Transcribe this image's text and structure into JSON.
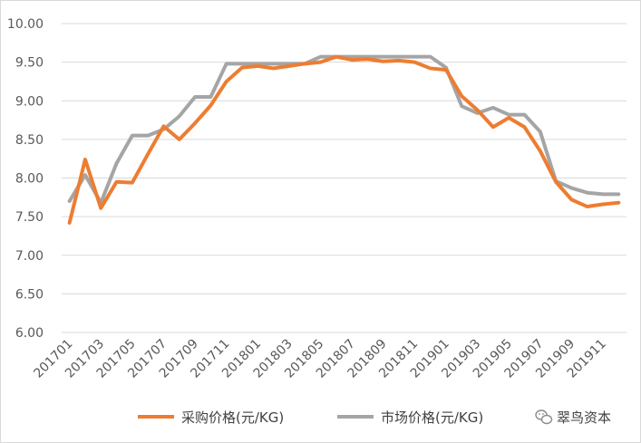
{
  "chart_data": {
    "type": "line",
    "title": "",
    "xlabel": "",
    "ylabel": "",
    "ylim": [
      6.0,
      10.0
    ],
    "y_ticks": [
      "6.00",
      "6.50",
      "7.00",
      "7.50",
      "8.00",
      "8.50",
      "9.00",
      "9.50",
      "10.00"
    ],
    "grid": true,
    "legend_position": "bottom",
    "x": [
      "201701",
      "201702",
      "201703",
      "201704",
      "201705",
      "201706",
      "201707",
      "201708",
      "201709",
      "201710",
      "201711",
      "201712",
      "201801",
      "201802",
      "201803",
      "201804",
      "201805",
      "201806",
      "201807",
      "201808",
      "201809",
      "201810",
      "201811",
      "201812",
      "201901",
      "201902",
      "201903",
      "201904",
      "201905",
      "201906",
      "201907",
      "201908",
      "201909",
      "201910",
      "201911",
      "201912"
    ],
    "x_tick_labels": [
      "201701",
      "201703",
      "201705",
      "201707",
      "201709",
      "201711",
      "201801",
      "201803",
      "201805",
      "201807",
      "201809",
      "201811",
      "201901",
      "201903",
      "201905",
      "201907",
      "201909",
      "201911"
    ],
    "series": [
      {
        "name": "采购价格(元/KG)",
        "color": "#ED7D31",
        "values": [
          7.42,
          8.24,
          7.61,
          7.95,
          7.94,
          8.31,
          8.67,
          8.5,
          8.71,
          8.94,
          9.25,
          9.43,
          9.45,
          9.42,
          9.45,
          9.48,
          9.5,
          9.57,
          9.53,
          9.54,
          9.51,
          9.52,
          9.5,
          9.42,
          9.4,
          9.06,
          8.88,
          8.66,
          8.78,
          8.66,
          8.35,
          7.95,
          7.72,
          7.63,
          7.66,
          7.68
        ]
      },
      {
        "name": "市场价格(元/KG)",
        "color": "#A5A5A5",
        "values": [
          7.7,
          8.04,
          7.68,
          8.19,
          8.55,
          8.55,
          8.63,
          8.8,
          9.05,
          9.05,
          9.48,
          9.48,
          9.48,
          9.48,
          9.48,
          9.48,
          9.57,
          9.57,
          9.57,
          9.57,
          9.57,
          9.57,
          9.57,
          9.57,
          9.43,
          8.93,
          8.84,
          8.91,
          8.82,
          8.82,
          8.6,
          7.96,
          7.87,
          7.81,
          7.79,
          7.79
        ]
      }
    ]
  },
  "watermark": {
    "text": "翠鸟资本",
    "icon": "wechat-icon"
  }
}
